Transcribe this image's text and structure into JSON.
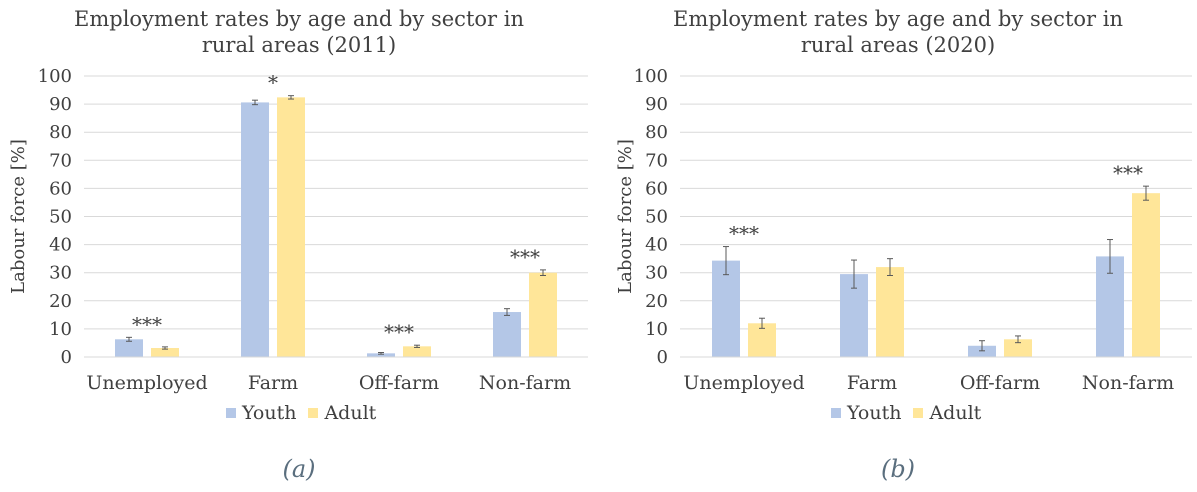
{
  "colors": {
    "youth": "#b4c7e7",
    "adult": "#ffe699",
    "grid": "#d9d9d9",
    "text": "#404040",
    "errorbar": "#595959"
  },
  "chart_data": [
    {
      "type": "bar",
      "title": "Employment rates by age and by sector in rural areas (2011)",
      "caption": "(a)",
      "ylabel": "Labour force [%]",
      "ylim": [
        0,
        100
      ],
      "yticks": [
        0,
        10,
        20,
        30,
        40,
        50,
        60,
        70,
        80,
        90,
        100
      ],
      "grid": true,
      "legend_position": "bottom",
      "categories": [
        "Unemployed",
        "Farm",
        "Off-farm",
        "Non-farm"
      ],
      "series": [
        {
          "name": "Youth",
          "values": [
            6.3,
            90.6,
            1.3,
            16.0
          ],
          "errors": [
            0.7,
            0.8,
            0.3,
            1.2
          ]
        },
        {
          "name": "Adult",
          "values": [
            3.2,
            92.4,
            3.8,
            30.0
          ],
          "errors": [
            0.4,
            0.6,
            0.4,
            1.0
          ]
        }
      ],
      "significance": [
        "***",
        "*",
        "***",
        "***"
      ]
    },
    {
      "type": "bar",
      "title": "Employment rates by age and by sector in rural areas (2020)",
      "caption": "(b)",
      "ylabel": "Labour force [%]",
      "ylim": [
        0,
        100
      ],
      "yticks": [
        0,
        10,
        20,
        30,
        40,
        50,
        60,
        70,
        80,
        90,
        100
      ],
      "grid": true,
      "legend_position": "bottom",
      "categories": [
        "Unemployed",
        "Farm",
        "Off-farm",
        "Non-farm"
      ],
      "series": [
        {
          "name": "Youth",
          "values": [
            34.3,
            29.5,
            4.0,
            35.8
          ],
          "errors": [
            5.0,
            5.0,
            1.8,
            6.0
          ]
        },
        {
          "name": "Adult",
          "values": [
            12.0,
            32.0,
            6.3,
            58.3
          ],
          "errors": [
            1.8,
            3.0,
            1.2,
            2.5
          ]
        }
      ],
      "significance": [
        "***",
        "",
        "",
        "***"
      ]
    }
  ]
}
